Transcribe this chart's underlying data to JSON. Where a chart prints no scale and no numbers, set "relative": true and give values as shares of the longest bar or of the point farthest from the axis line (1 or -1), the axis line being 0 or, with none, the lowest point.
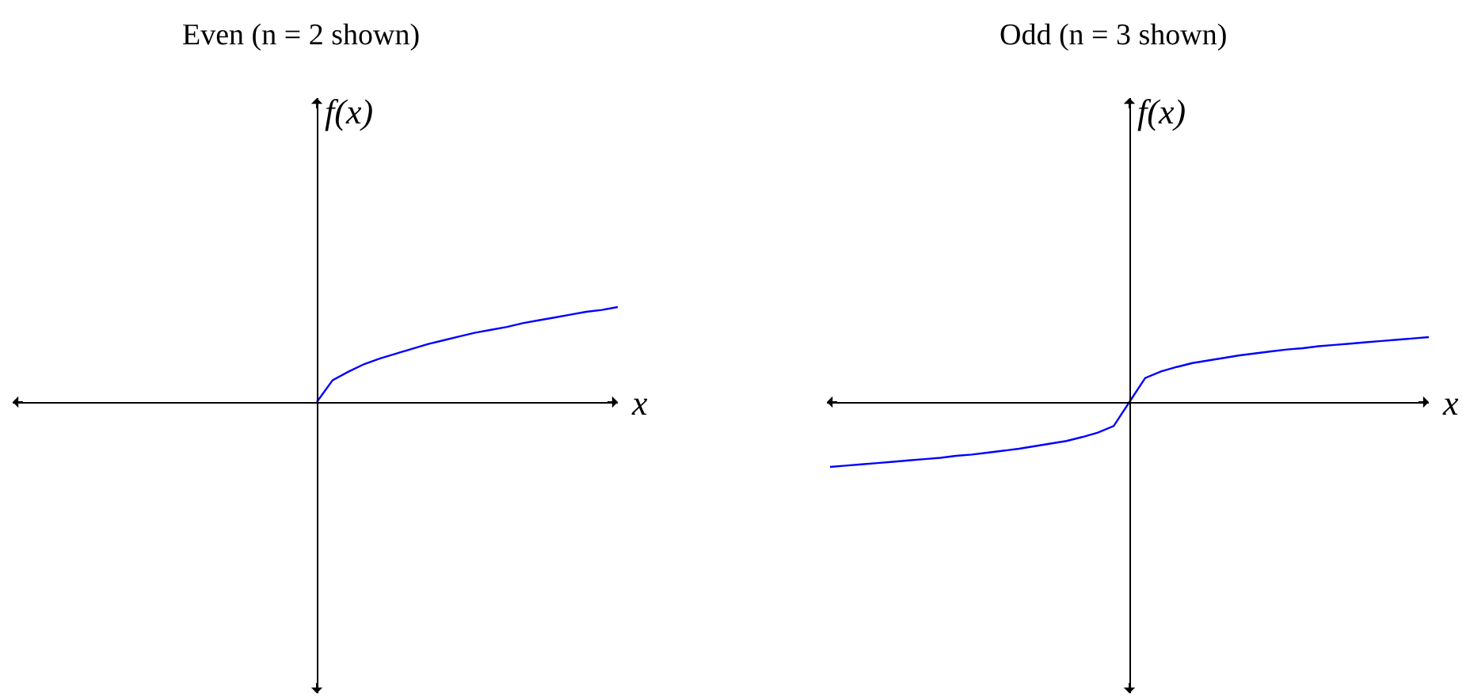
{
  "chart_data": [
    {
      "type": "line",
      "title": "Even (n = 2 shown)",
      "xlabel": "x",
      "ylabel": "f(x)",
      "relative": true,
      "categories": [
        null,
        null,
        null,
        null,
        null,
        null,
        null,
        null,
        null,
        null,
        null,
        null,
        null,
        null,
        null,
        null,
        null,
        null,
        null,
        null,
        null,
        null,
        null,
        null,
        null,
        null,
        null,
        null,
        null,
        null,
        null,
        null,
        null,
        null,
        null,
        null,
        null,
        null,
        null
      ],
      "series": [
        {
          "color": "#0000ff",
          "values": [
            null,
            null,
            null,
            null,
            null,
            null,
            null,
            null,
            null,
            null,
            null,
            null,
            null,
            null,
            null,
            null,
            null,
            null,
            null,
            0,
            0.23,
            0.32,
            0.4,
            0.46,
            0.51,
            0.56,
            0.61,
            0.65,
            0.69,
            0.73,
            0.76,
            0.79,
            0.83,
            0.86,
            0.89,
            0.92,
            0.95,
            0.97,
            1
          ]
        }
      ]
    },
    {
      "type": "line",
      "title": "Odd (n = 3 shown)",
      "xlabel": "x",
      "ylabel": "f(x)",
      "relative": true,
      "categories": [
        null,
        null,
        null,
        null,
        null,
        null,
        null,
        null,
        null,
        null,
        null,
        null,
        null,
        null,
        null,
        null,
        null,
        null,
        null,
        null,
        null,
        null,
        null,
        null,
        null,
        null,
        null,
        null,
        null,
        null,
        null,
        null,
        null,
        null,
        null,
        null,
        null,
        null,
        null
      ],
      "series": [
        {
          "color": "#0000ff",
          "values": [
            -1,
            -0.98,
            -0.96,
            -0.94,
            -0.92,
            -0.9,
            -0.88,
            -0.86,
            -0.83,
            -0.81,
            -0.78,
            -0.75,
            -0.72,
            -0.68,
            -0.64,
            -0.6,
            -0.54,
            -0.47,
            -0.37,
            0,
            0.37,
            0.47,
            0.54,
            0.6,
            0.64,
            0.68,
            0.72,
            0.75,
            0.78,
            0.81,
            0.83,
            0.86,
            0.88,
            0.9,
            0.92,
            0.94,
            0.96,
            0.98,
            1
          ]
        }
      ]
    }
  ]
}
